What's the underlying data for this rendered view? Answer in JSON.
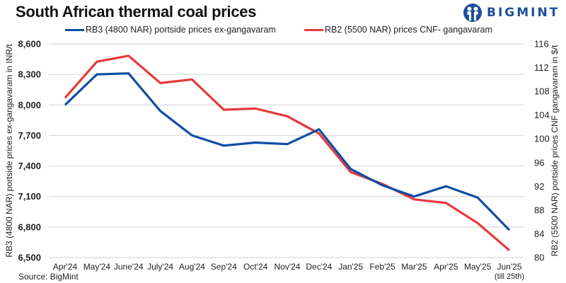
{
  "header": {
    "title": "South African thermal coal prices",
    "logo_text": "BIGMINT"
  },
  "source": "Source: BigMint",
  "colors": {
    "rb3": "#0f4ea3",
    "rb2": "#e8383b",
    "grid": "#d9d9d9",
    "logo": "#1d4f9c"
  },
  "chart_data": {
    "type": "line",
    "title": "South African thermal coal prices",
    "categories": [
      "Apr'24",
      "May'24",
      "June'24",
      "July'24",
      "Aug'24",
      "Sep'24",
      "Oct'24",
      "Nov'24",
      "Dec'24",
      "Jan'25",
      "Feb'25",
      "Mar'25",
      "Apr'25",
      "May'25",
      "Jun'25"
    ],
    "category_sublabels": [
      "",
      "",
      "",
      "",
      "",
      "",
      "",
      "",
      "",
      "",
      "",
      "",
      "",
      "",
      "(till 25th)"
    ],
    "ylabel": "RB3 (4800 NAR) portside prices ex-gangavaram in INR/t",
    "y2label": "RB2 (5500 NAR) portside prices CNF gangavaram in $/t",
    "ylim": [
      6500,
      8600
    ],
    "yticks": [
      6500,
      6800,
      7100,
      7400,
      7700,
      8000,
      8300,
      8600
    ],
    "ytick_labels": [
      "6,500",
      "6,800",
      "7,100",
      "7,400",
      "7,700",
      "8,000",
      "8,300",
      "8,600"
    ],
    "y2lim": [
      80,
      116
    ],
    "y2ticks": [
      80,
      84,
      88,
      92,
      96,
      100,
      104,
      108,
      112,
      116
    ],
    "grid": true,
    "legend_position": "top",
    "series": [
      {
        "name": "RB3 (4800 NAR) portside prices ex-gangavaram",
        "axis": "left",
        "color": "#0f4ea3",
        "values": [
          8000,
          8300,
          8310,
          7940,
          7700,
          7600,
          7630,
          7615,
          7760,
          7370,
          7210,
          7100,
          7200,
          7090,
          6770
        ]
      },
      {
        "name": "RB2 (5500 NAR) prices CNF- gangavaram",
        "axis": "right",
        "color": "#e8383b",
        "values": [
          106.9,
          113.0,
          114.0,
          109.4,
          110.0,
          104.9,
          105.1,
          103.8,
          100.9,
          94.4,
          92.4,
          89.8,
          89.2,
          85.8,
          81.2
        ]
      }
    ]
  }
}
